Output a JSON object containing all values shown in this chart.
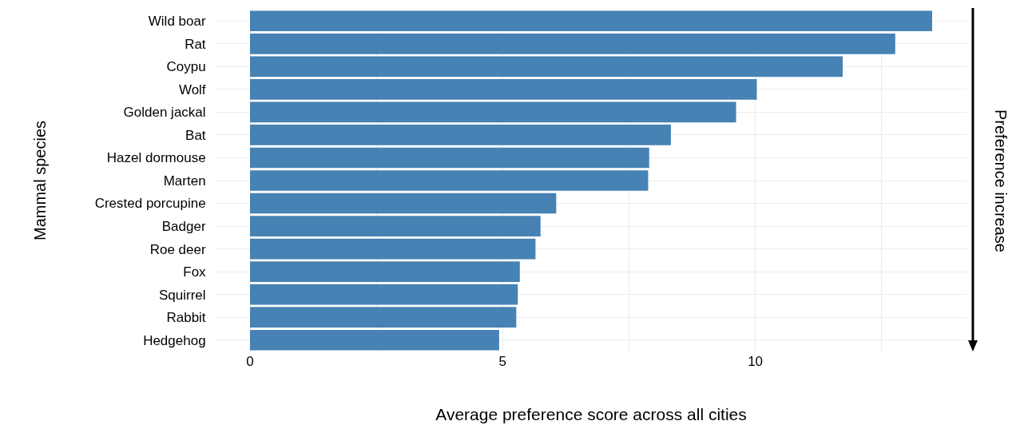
{
  "chart_data": {
    "type": "bar",
    "orientation": "horizontal",
    "xlabel": "Average preference score across all cities",
    "ylabel": "Mammal species",
    "categories": [
      "Wild boar",
      "Rat",
      "Coypu",
      "Wolf",
      "Golden jackal",
      "Bat",
      "Hazel dormouse",
      "Marten",
      "Crested porcupine",
      "Badger",
      "Roe deer",
      "Fox",
      "Squirrel",
      "Rabbit",
      "Hedgehog"
    ],
    "values": [
      13.5,
      12.77,
      11.73,
      10.03,
      9.62,
      8.33,
      7.9,
      7.88,
      6.06,
      5.75,
      5.65,
      5.34,
      5.3,
      5.27,
      4.93
    ],
    "color": "#4682b4",
    "xlim": [
      -0.68,
      14.18
    ],
    "xticks": [
      0,
      {
        "value": 2.5,
        "label": null
      },
      5,
      {
        "value": 7.5,
        "label": null
      },
      10,
      {
        "value": 12.5,
        "label": null
      }
    ],
    "grid": true,
    "annotations": [
      "Preference increase"
    ]
  }
}
